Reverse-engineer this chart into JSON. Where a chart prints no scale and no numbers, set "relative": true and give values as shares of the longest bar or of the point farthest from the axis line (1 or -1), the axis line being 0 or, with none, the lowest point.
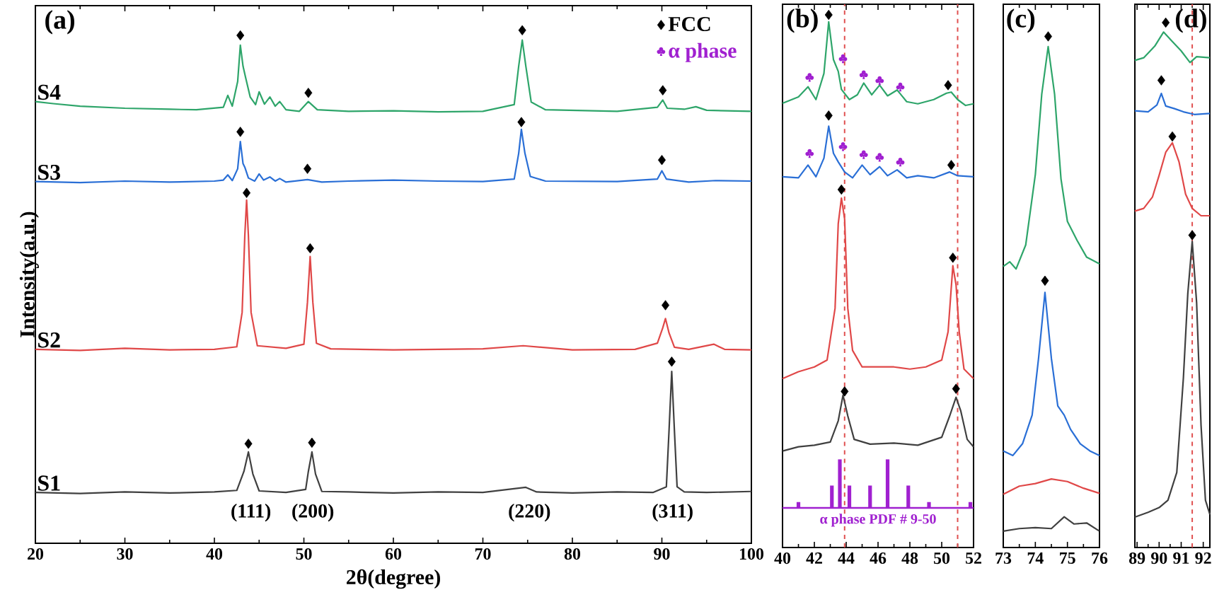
{
  "chart_data": [
    {
      "type": "line",
      "title": "(a)",
      "xlabel": "2θ(degree)",
      "ylabel": "Intensity(a.u.)",
      "relative": true,
      "xlim": [
        20,
        100
      ],
      "xticks": [
        20,
        30,
        40,
        50,
        60,
        70,
        80,
        90,
        100
      ],
      "legend": "top right",
      "series": [
        {
          "name": "S1",
          "color": "#404040",
          "x": [
            20,
            25,
            30,
            35,
            40,
            42.5,
            43.3,
            43.8,
            44.3,
            45,
            48,
            50.2,
            50.5,
            50.9,
            51.3,
            52,
            55,
            60,
            65,
            70,
            74.8,
            76,
            80,
            85,
            89,
            90.5,
            90.8,
            91.1,
            91.4,
            91.7,
            92.5,
            95,
            100
          ],
          "values": [
            0.099,
            0.097,
            0.1,
            0.098,
            0.1,
            0.103,
            0.14,
            0.178,
            0.135,
            0.102,
            0.099,
            0.105,
            0.14,
            0.178,
            0.135,
            0.101,
            0.1,
            0.098,
            0.1,
            0.099,
            0.109,
            0.1,
            0.098,
            0.1,
            0.099,
            0.11,
            0.22,
            0.335,
            0.22,
            0.11,
            0.1,
            0.099,
            0.101
          ]
        },
        {
          "name": "S2",
          "color": "#e04848",
          "x": [
            20,
            25,
            30,
            35,
            40,
            42.5,
            43.1,
            43.4,
            43.6,
            43.8,
            44.1,
            44.8,
            48,
            50.0,
            50.4,
            50.7,
            51.0,
            51.4,
            53,
            60,
            70,
            74.5,
            80,
            87,
            89.5,
            90.1,
            90.4,
            90.8,
            91.4,
            93,
            95.8,
            97,
            100
          ],
          "values": [
            0.378,
            0.376,
            0.38,
            0.377,
            0.378,
            0.383,
            0.45,
            0.6,
            0.669,
            0.6,
            0.45,
            0.385,
            0.38,
            0.388,
            0.47,
            0.559,
            0.47,
            0.39,
            0.379,
            0.377,
            0.379,
            0.385,
            0.377,
            0.378,
            0.39,
            0.42,
            0.438,
            0.41,
            0.382,
            0.378,
            0.388,
            0.378,
            0.377
          ]
        },
        {
          "name": "S3",
          "color": "#2a6fd6",
          "x": [
            20,
            25,
            30,
            35,
            40,
            41.0,
            41.5,
            42.0,
            42.6,
            42.9,
            43.2,
            43.4,
            43.8,
            44.5,
            45.0,
            45.5,
            46.2,
            46.8,
            47.3,
            48,
            50.4,
            52,
            55,
            60,
            65,
            70,
            73.5,
            74.0,
            74.3,
            74.7,
            75.3,
            77,
            85,
            89.5,
            90.0,
            90.5,
            93,
            96,
            100
          ],
          "values": [
            0.705,
            0.703,
            0.706,
            0.704,
            0.706,
            0.708,
            0.718,
            0.707,
            0.73,
            0.783,
            0.74,
            0.733,
            0.712,
            0.706,
            0.72,
            0.708,
            0.714,
            0.706,
            0.711,
            0.704,
            0.709,
            0.704,
            0.706,
            0.708,
            0.706,
            0.705,
            0.71,
            0.76,
            0.807,
            0.76,
            0.715,
            0.706,
            0.705,
            0.71,
            0.726,
            0.71,
            0.704,
            0.707,
            0.706
          ]
        },
        {
          "name": "S4",
          "color": "#2ea56a",
          "x": [
            20,
            22,
            25,
            30,
            35,
            38,
            41.0,
            41.5,
            42.0,
            42.6,
            42.9,
            43.2,
            43.5,
            44.0,
            44.6,
            45.0,
            45.6,
            46.2,
            46.8,
            47.3,
            48,
            49.5,
            50.5,
            51.5,
            55,
            60,
            65,
            70,
            73.5,
            74.0,
            74.4,
            74.8,
            75.4,
            77,
            85,
            89.5,
            90.1,
            90.6,
            92.5,
            93.8,
            95,
            100
          ],
          "values": [
            0.861,
            0.857,
            0.852,
            0.848,
            0.846,
            0.845,
            0.85,
            0.873,
            0.852,
            0.9,
            0.971,
            0.93,
            0.907,
            0.87,
            0.855,
            0.88,
            0.856,
            0.87,
            0.852,
            0.861,
            0.845,
            0.842,
            0.861,
            0.845,
            0.842,
            0.843,
            0.841,
            0.842,
            0.855,
            0.93,
            0.981,
            0.93,
            0.86,
            0.845,
            0.842,
            0.85,
            0.864,
            0.848,
            0.846,
            0.851,
            0.844,
            0.842
          ]
        },
        {
          "name": "FCC",
          "type": "scatter",
          "marker": "diamond",
          "color": "#000000",
          "x": [
            43.8,
            50.9,
            91.1,
            43.6,
            50.7,
            90.4,
            42.9,
            50.4,
            74.3,
            90.0,
            42.9,
            50.5,
            74.4,
            90.1
          ],
          "values": [
            0.194,
            0.196,
            0.354,
            0.683,
            0.575,
            0.464,
            0.802,
            0.73,
            0.821,
            0.747,
            0.99,
            0.878,
            1.0,
            0.883
          ]
        },
        {
          "name": "α phase",
          "type": "scatter",
          "color": "#a020d0"
        }
      ],
      "annotations": [
        "(111)",
        "(200)",
        "(220)",
        "(311)"
      ]
    },
    {
      "type": "line",
      "title": "(b)",
      "relative": true,
      "xlim": [
        40,
        52
      ],
      "xticks": [
        40,
        42,
        44,
        46,
        48,
        50,
        52
      ],
      "series": [
        {
          "color": "#404040",
          "x": [
            40,
            41,
            42,
            43,
            43.5,
            43.8,
            44.1,
            44.5,
            45.5,
            47,
            48.5,
            50,
            50.5,
            50.9,
            51.2,
            51.6,
            52
          ],
          "values": [
            0.181,
            0.189,
            0.192,
            0.198,
            0.238,
            0.286,
            0.247,
            0.203,
            0.194,
            0.196,
            0.192,
            0.207,
            0.247,
            0.282,
            0.256,
            0.203,
            0.189
          ]
        },
        {
          "color": "#e04848",
          "x": [
            40,
            41,
            42,
            42.8,
            43.3,
            43.5,
            43.7,
            43.9,
            44.1,
            44.4,
            45,
            46,
            47,
            48,
            49,
            50,
            50.4,
            50.7,
            50.9,
            51.1,
            51.4,
            52
          ],
          "values": [
            0.317,
            0.33,
            0.339,
            0.352,
            0.449,
            0.608,
            0.656,
            0.617,
            0.449,
            0.37,
            0.339,
            0.339,
            0.339,
            0.335,
            0.339,
            0.352,
            0.405,
            0.529,
            0.493,
            0.405,
            0.335,
            0.317
          ]
        },
        {
          "color": "#2a6fd6",
          "x": [
            40,
            41.0,
            41.6,
            42.1,
            42.6,
            42.9,
            43.2,
            43.5,
            43.9,
            44.4,
            45.0,
            45.5,
            46.1,
            46.6,
            47.2,
            47.8,
            48.5,
            49.5,
            50.5,
            51.0,
            52
          ],
          "values": [
            0.696,
            0.694,
            0.718,
            0.696,
            0.731,
            0.791,
            0.74,
            0.724,
            0.705,
            0.694,
            0.718,
            0.7,
            0.715,
            0.698,
            0.709,
            0.694,
            0.698,
            0.694,
            0.705,
            0.698,
            0.696
          ]
        },
        {
          "color": "#2ea56a",
          "x": [
            40,
            41.0,
            41.6,
            42.1,
            42.6,
            42.9,
            43.2,
            43.5,
            43.7,
            44.2,
            44.7,
            45.1,
            45.6,
            46.1,
            46.6,
            47.2,
            47.8,
            48.5,
            49.5,
            50.3,
            50.6,
            51.0,
            51.5,
            52
          ],
          "values": [
            0.834,
            0.846,
            0.865,
            0.841,
            0.89,
            0.987,
            0.916,
            0.894,
            0.86,
            0.841,
            0.85,
            0.872,
            0.85,
            0.868,
            0.848,
            0.859,
            0.837,
            0.833,
            0.841,
            0.853,
            0.855,
            0.841,
            0.83,
            0.833
          ]
        },
        {
          "type": "scatter",
          "marker": "diamond",
          "color": "#000000",
          "x": [
            43.9,
            50.9,
            43.7,
            50.7,
            42.9,
            50.6,
            42.9,
            50.4
          ],
          "values": [
            0.293,
            0.298,
            0.672,
            0.544,
            0.811,
            0.718,
            1.0,
            0.868
          ]
        },
        {
          "type": "scatter",
          "color": "#a020d0",
          "x": [
            41.7,
            43.8,
            45.1,
            46.1,
            47.4,
            41.7,
            43.8,
            45.1,
            46.1,
            47.4
          ],
          "values": [
            0.74,
            0.753,
            0.738,
            0.733,
            0.724,
            0.883,
            0.918,
            0.888,
            0.877,
            0.865
          ]
        }
      ],
      "ref_lines": [
        {
          "axis": "x",
          "value": 43.9,
          "color": "#e05050",
          "line_style": "dashed"
        },
        {
          "axis": "x",
          "value": 51.0,
          "color": "#e05050",
          "line_style": "dashed"
        }
      ]
    },
    {
      "type": "bar",
      "relative": true,
      "xlim": [
        40,
        52
      ],
      "series": [
        {
          "name": "α phase PDF # 9-50",
          "color": "#a020d0",
          "x": [
            41.0,
            43.1,
            43.6,
            44.2,
            45.5,
            46.6,
            47.9,
            49.2,
            51.8
          ],
          "values": [
            0.12,
            0.46,
            1.0,
            0.46,
            0.46,
            1.0,
            0.46,
            0.12,
            0.12
          ]
        }
      ]
    },
    {
      "type": "line",
      "title": "(c)",
      "relative": true,
      "xlim": [
        73,
        76
      ],
      "xticks": [
        73,
        74,
        75,
        76
      ],
      "series": [
        {
          "color": "#404040",
          "x": [
            73,
            73.5,
            74,
            74.5,
            74.9,
            75.2,
            75.6,
            76
          ],
          "values": [
            0.032,
            0.037,
            0.039,
            0.037,
            0.06,
            0.046,
            0.048,
            0.032
          ]
        },
        {
          "color": "#e04848",
          "x": [
            73,
            73.5,
            74,
            74.5,
            75,
            75.5,
            76
          ],
          "values": [
            0.104,
            0.12,
            0.125,
            0.134,
            0.129,
            0.116,
            0.106
          ]
        },
        {
          "color": "#2a6fd6",
          "x": [
            73,
            73.3,
            73.6,
            73.9,
            74.1,
            74.3,
            74.5,
            74.7,
            74.9,
            75.1,
            75.4,
            75.7,
            76
          ],
          "values": [
            0.189,
            0.18,
            0.203,
            0.259,
            0.37,
            0.499,
            0.37,
            0.277,
            0.259,
            0.231,
            0.203,
            0.189,
            0.18
          ]
        },
        {
          "color": "#2ea56a",
          "x": [
            73,
            73.2,
            73.4,
            73.7,
            74.0,
            74.2,
            74.4,
            74.6,
            74.8,
            75.0,
            75.3,
            75.6,
            76
          ],
          "values": [
            0.55,
            0.559,
            0.545,
            0.592,
            0.73,
            0.887,
            0.98,
            0.887,
            0.721,
            0.638,
            0.601,
            0.568,
            0.555
          ]
        },
        {
          "type": "scatter",
          "marker": "diamond",
          "color": "#000000",
          "x": [
            74.4,
            74.3
          ],
          "values": [
            1.0,
            0.522
          ]
        }
      ]
    },
    {
      "type": "line",
      "title": "(d)",
      "relative": true,
      "xlim": [
        88.9,
        92.3
      ],
      "xticks": [
        89,
        90,
        91,
        92
      ],
      "series": [
        {
          "color": "#404040",
          "x": [
            88.9,
            89.5,
            90.0,
            90.4,
            90.8,
            91.1,
            91.3,
            91.5,
            91.7,
            91.9,
            92.1,
            92.3
          ],
          "values": [
            0.058,
            0.067,
            0.076,
            0.09,
            0.143,
            0.323,
            0.484,
            0.583,
            0.466,
            0.233,
            0.09,
            0.063
          ]
        },
        {
          "color": "#e04848",
          "x": [
            88.9,
            89.3,
            89.7,
            90.0,
            90.3,
            90.6,
            90.9,
            91.2,
            91.5,
            91.9,
            92.3
          ],
          "values": [
            0.641,
            0.646,
            0.668,
            0.709,
            0.753,
            0.771,
            0.735,
            0.673,
            0.646,
            0.632,
            0.632
          ]
        },
        {
          "color": "#2a6fd6",
          "x": [
            88.9,
            89.5,
            89.9,
            90.1,
            90.3,
            90.7,
            91.1,
            91.6,
            92.3
          ],
          "values": [
            0.832,
            0.83,
            0.843,
            0.865,
            0.841,
            0.836,
            0.83,
            0.825,
            0.827
          ]
        },
        {
          "color": "#2ea56a",
          "x": [
            88.9,
            89.3,
            89.8,
            90.2,
            90.6,
            91.0,
            91.4,
            91.7,
            92.3
          ],
          "values": [
            0.928,
            0.933,
            0.955,
            0.982,
            0.964,
            0.946,
            0.924,
            0.935,
            0.933
          ]
        },
        {
          "type": "scatter",
          "marker": "diamond",
          "color": "#000000",
          "x": [
            90.3,
            90.1,
            90.6,
            91.5
          ],
          "values": [
            1.0,
            0.89,
            0.783,
            0.595
          ]
        }
      ],
      "ref_lines": [
        {
          "axis": "x",
          "value": 91.5,
          "color": "#e05050",
          "line_style": "dashed"
        }
      ]
    }
  ]
}
